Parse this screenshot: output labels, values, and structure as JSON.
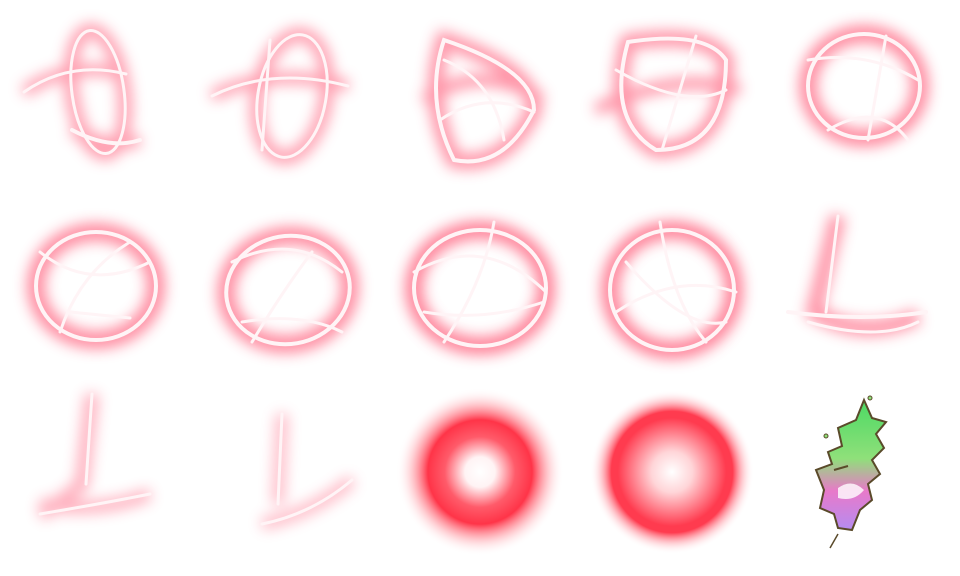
{
  "sprite_sheet": {
    "columns": 5,
    "rows": 3,
    "frame_count": 15,
    "colors": {
      "background": "#ffffff",
      "glow": "#ff4d6d",
      "glow_soft": "#ff9aaa",
      "core": "#fff4f6",
      "orb_inner": "#ffffff",
      "orb_outer": "#ff3b4f",
      "rune_green": "#4cd964",
      "rune_pink": "#e879c9",
      "rune_outline": "#5a4a2a"
    },
    "frames": [
      {
        "kind": "crossed-rings-icon"
      },
      {
        "kind": "crossed-rings-icon"
      },
      {
        "kind": "crossed-rings-icon"
      },
      {
        "kind": "crossed-rings-icon"
      },
      {
        "kind": "crossed-rings-icon"
      },
      {
        "kind": "crossed-rings-icon"
      },
      {
        "kind": "crossed-rings-icon"
      },
      {
        "kind": "crossed-rings-icon"
      },
      {
        "kind": "crossed-rings-icon"
      },
      {
        "kind": "fading-rings-icon"
      },
      {
        "kind": "fading-rings-icon"
      },
      {
        "kind": "fading-rings-icon"
      },
      {
        "kind": "glow-ring-orb-icon"
      },
      {
        "kind": "glow-solid-orb-icon"
      },
      {
        "kind": "rune-glyph-icon"
      }
    ]
  }
}
